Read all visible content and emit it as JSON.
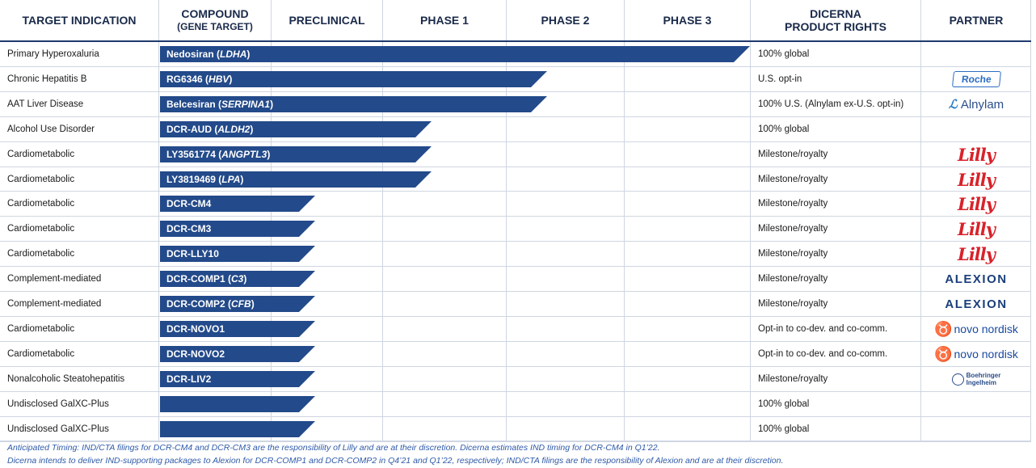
{
  "header": {
    "target_indication": "TARGET INDICATION",
    "compound": "COMPOUND",
    "compound_sub": "(GENE TARGET)",
    "preclinical": "PRECLINICAL",
    "phase1": "PHASE 1",
    "phase2": "PHASE 2",
    "phase3": "PHASE 3",
    "rights_line1": "DICERNA",
    "rights_line2": "PRODUCT RIGHTS",
    "partner": "PARTNER"
  },
  "chart_data": {
    "type": "bar",
    "orientation": "horizontal",
    "stages": [
      "PRECLINICAL",
      "PHASE 1",
      "PHASE 2",
      "PHASE 3"
    ],
    "rows": [
      {
        "indication": "Primary Hyperoxaluria",
        "compound": "Nedosiran",
        "gene": "LDHA",
        "progress": 5.0,
        "rights": "100% global",
        "partner": ""
      },
      {
        "indication": "Chronic Hepatitis B",
        "compound": "RG6346",
        "gene": "HBV",
        "progress": 3.35,
        "rights": "U.S. opt-in",
        "partner": "roche"
      },
      {
        "indication": "AAT Liver Disease",
        "compound": "Belcesiran",
        "gene": "SERPINA1",
        "progress": 3.35,
        "rights": "100% U.S. (Alnylam ex-U.S. opt-in)",
        "partner": "alnylam"
      },
      {
        "indication": "Alcohol Use Disorder",
        "compound": "DCR-AUD",
        "gene": "ALDH2",
        "progress": 2.4,
        "rights": "100% global",
        "partner": ""
      },
      {
        "indication": "Cardiometabolic",
        "compound": "LY3561774",
        "gene": "ANGPTL3",
        "progress": 2.4,
        "rights": "Milestone/royalty",
        "partner": "lilly"
      },
      {
        "indication": "Cardiometabolic",
        "compound": "LY3819469",
        "gene": "LPA",
        "progress": 2.4,
        "rights": "Milestone/royalty",
        "partner": "lilly"
      },
      {
        "indication": "Cardiometabolic",
        "compound": "DCR-CM4",
        "gene": "",
        "progress": 1.4,
        "rights": "Milestone/royalty",
        "partner": "lilly"
      },
      {
        "indication": "Cardiometabolic",
        "compound": "DCR-CM3",
        "gene": "",
        "progress": 1.4,
        "rights": "Milestone/royalty",
        "partner": "lilly"
      },
      {
        "indication": "Cardiometabolic",
        "compound": "DCR-LLY10",
        "gene": "",
        "progress": 1.4,
        "rights": "Milestone/royalty",
        "partner": "lilly"
      },
      {
        "indication": "Complement-mediated",
        "compound": "DCR-COMP1",
        "gene": "C3",
        "progress": 1.4,
        "rights": "Milestone/royalty",
        "partner": "alexion"
      },
      {
        "indication": "Complement-mediated",
        "compound": "DCR-COMP2",
        "gene": "CFB",
        "progress": 1.4,
        "rights": "Milestone/royalty",
        "partner": "alexion"
      },
      {
        "indication": "Cardiometabolic",
        "compound": "DCR-NOVO1",
        "gene": "",
        "progress": 1.4,
        "rights": "Opt-in to co-dev. and co-comm.",
        "partner": "novo"
      },
      {
        "indication": "Cardiometabolic",
        "compound": "DCR-NOVO2",
        "gene": "",
        "progress": 1.4,
        "rights": "Opt-in to co-dev. and co-comm.",
        "partner": "novo"
      },
      {
        "indication": "Nonalcoholic Steatohepatitis",
        "compound": "DCR-LIV2",
        "gene": "",
        "progress": 1.4,
        "rights": "Milestone/royalty",
        "partner": "bi"
      },
      {
        "indication": "Undisclosed GalXC-Plus",
        "compound": "",
        "gene": "",
        "progress": 1.4,
        "rights": "100% global",
        "partner": ""
      },
      {
        "indication": "Undisclosed GalXC-Plus",
        "compound": "",
        "gene": "",
        "progress": 1.4,
        "rights": "100% global",
        "partner": ""
      }
    ]
  },
  "partners": {
    "roche": "Roche",
    "alnylam": "Alnylam",
    "lilly": "Lilly",
    "alexion": "ALEXION",
    "novo": "novo nordisk",
    "bi_line1": "Boehringer",
    "bi_line2": "Ingelheim"
  },
  "footnotes": [
    "Anticipated Timing: IND/CTA filings for DCR-CM4 and DCR-CM3 are the responsibility of Lilly and are at their discretion. Dicerna estimates IND timing for DCR-CM4 in Q1’22.",
    "Dicerna intends to deliver IND-supporting packages to Alexion for DCR-COMP1 and DCR-COMP2 in Q4’21 and Q1’22, respectively; IND/CTA filings are the responsibility of Alexion and are at their discretion."
  ],
  "colors": {
    "bar": "#234a8a",
    "header_text": "#1a2a4a",
    "grid": "#cfd6e1",
    "footnote": "#2e5aa8"
  }
}
